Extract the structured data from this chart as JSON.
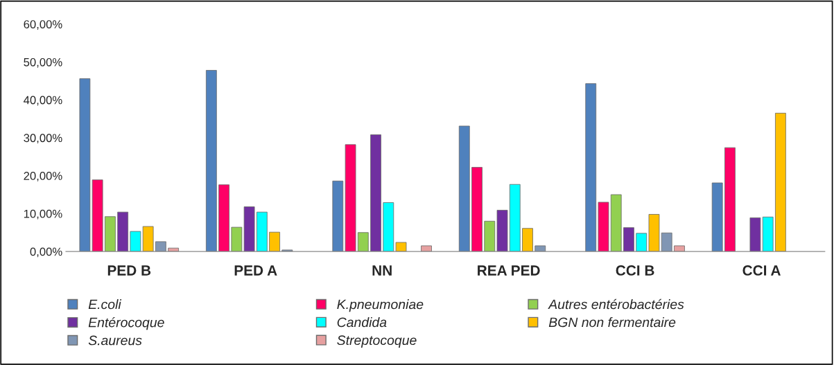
{
  "chart_data": {
    "type": "bar",
    "categories": [
      "PED B",
      "PED A",
      "NN",
      "REA PED",
      "CCI B",
      "CCI A"
    ],
    "series": [
      {
        "name": "E.coli",
        "color": "#4f81bd",
        "values": [
          45.6,
          47.8,
          18.6,
          33.1,
          44.3,
          18.1
        ]
      },
      {
        "name": "K.pneumoniae",
        "color": "#ff0066",
        "values": [
          18.9,
          17.6,
          28.2,
          22.2,
          13.0,
          27.4
        ]
      },
      {
        "name": "Autres entérobactéries",
        "color": "#92d050",
        "values": [
          9.2,
          6.4,
          5.0,
          8.0,
          15.0,
          null
        ]
      },
      {
        "name": "Entérocoque",
        "color": "#7030a0",
        "values": [
          10.4,
          11.8,
          30.8,
          10.9,
          6.3,
          8.9
        ]
      },
      {
        "name": "Candida",
        "color": "#00ffff",
        "values": [
          5.3,
          10.4,
          12.9,
          17.7,
          4.8,
          9.1
        ]
      },
      {
        "name": "BGN non fermentaire",
        "color": "#ffc000",
        "values": [
          6.6,
          5.1,
          2.4,
          6.1,
          9.8,
          36.5
        ]
      },
      {
        "name": "S.aureus",
        "color": "#8096b4",
        "values": [
          2.6,
          0.4,
          null,
          1.5,
          4.9,
          null
        ]
      },
      {
        "name": "Streptocoque",
        "color": "#e6a0a0",
        "values": [
          0.9,
          null,
          1.5,
          null,
          1.5,
          null
        ]
      }
    ],
    "ylim": [
      0,
      60
    ],
    "yticks": [
      {
        "value": 0,
        "label": "0,00%"
      },
      {
        "value": 10,
        "label": "10,00%"
      },
      {
        "value": 20,
        "label": "20,00%"
      },
      {
        "value": 30,
        "label": "30,00%"
      },
      {
        "value": 40,
        "label": "40,00%"
      },
      {
        "value": 50,
        "label": "50,00%"
      },
      {
        "value": 60,
        "label": "60,00%"
      }
    ],
    "grid": false,
    "legend": "bottom"
  }
}
